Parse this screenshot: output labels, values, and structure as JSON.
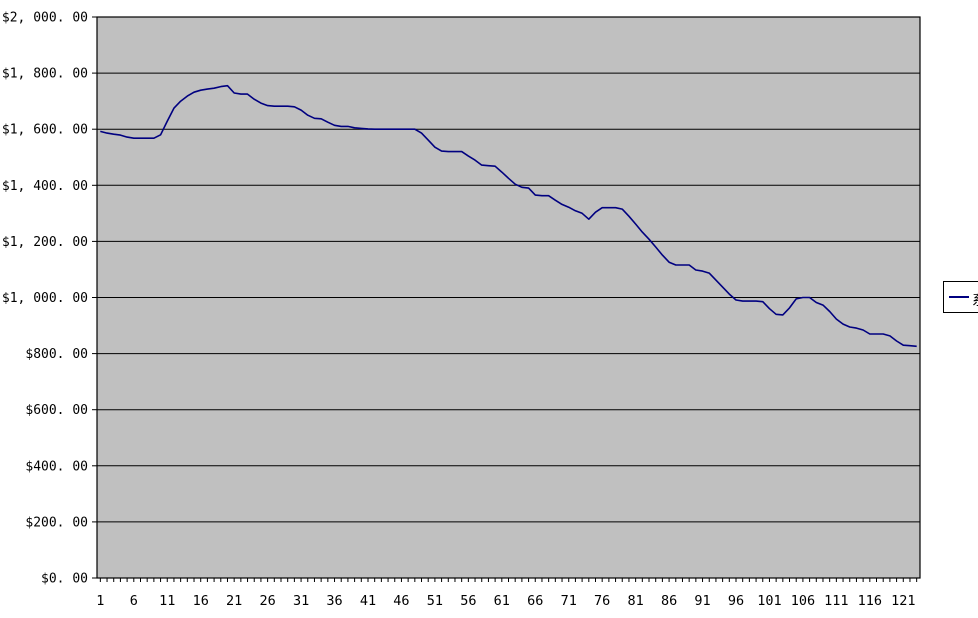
{
  "window": {
    "background": "#ffffff"
  },
  "colors": {
    "plot_bg": "#c0c0c0",
    "gridline": "#000000",
    "axis": "#000000",
    "series_line": "#000080",
    "label_text": "#000000",
    "legend_bg": "#ffffff",
    "legend_border": "#000000"
  },
  "legend": {
    "series_label": "系",
    "marker": "line-marker"
  },
  "chart_data": {
    "type": "line",
    "title": "",
    "xlabel": "",
    "ylabel": "",
    "x_first": 1,
    "x_last": 123,
    "x_label_step": 5,
    "ylim": [
      0,
      2000
    ],
    "y_step": 200,
    "grid": "horizontal-major",
    "legend_position": "right-clipped",
    "y_tick_labels": [
      "$0. 00",
      "$200. 00",
      "$400. 00",
      "$600. 00",
      "$800. 00",
      "$1, 000. 00",
      "$1, 200. 00",
      "$1, 400. 00",
      "$1, 600. 00",
      "$1, 800. 00",
      "$2, 000. 00"
    ],
    "x_tick_labels": [
      "1",
      "6",
      "11",
      "16",
      "21",
      "26",
      "31",
      "36",
      "41",
      "46",
      "51",
      "56",
      "61",
      "66",
      "71",
      "76",
      "81",
      "86",
      "91",
      "96",
      "101",
      "106",
      "111",
      "116",
      "121"
    ],
    "values": [
      1592,
      1586,
      1582,
      1579,
      1572,
      1568,
      1568,
      1568,
      1568,
      1580,
      1629,
      1675,
      1700,
      1718,
      1732,
      1739,
      1743,
      1746,
      1752,
      1755,
      1729,
      1725,
      1725,
      1707,
      1693,
      1684,
      1682,
      1682,
      1682,
      1680,
      1668,
      1650,
      1639,
      1637,
      1625,
      1614,
      1610,
      1610,
      1605,
      1603,
      1601,
      1600,
      1600,
      1600,
      1600,
      1600,
      1600,
      1600,
      1586,
      1561,
      1536,
      1522,
      1520,
      1520,
      1520,
      1504,
      1490,
      1472,
      1470,
      1468,
      1447,
      1425,
      1404,
      1393,
      1390,
      1365,
      1363,
      1363,
      1347,
      1332,
      1322,
      1309,
      1300,
      1279,
      1304,
      1320,
      1320,
      1320,
      1315,
      1290,
      1262,
      1233,
      1208,
      1180,
      1151,
      1126,
      1116,
      1116,
      1116,
      1098,
      1094,
      1087,
      1062,
      1037,
      1012,
      991,
      987,
      987,
      987,
      985,
      960,
      940,
      938,
      963,
      995,
      1000,
      1000,
      982,
      973,
      950,
      923,
      905,
      895,
      891,
      884,
      870,
      870,
      870,
      863,
      845,
      830,
      828,
      826
    ]
  }
}
